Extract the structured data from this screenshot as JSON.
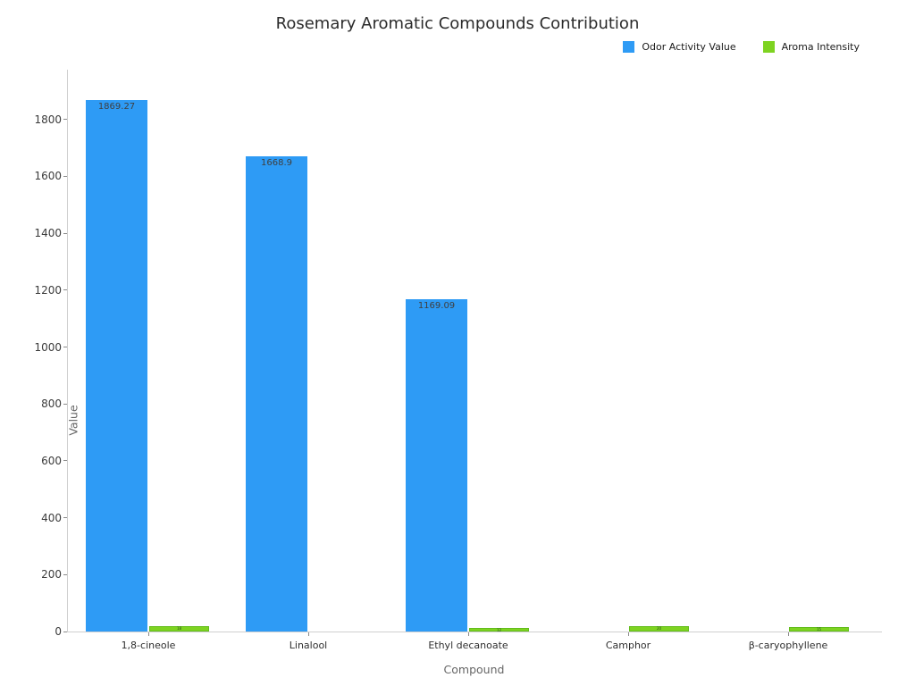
{
  "chart_data": {
    "type": "bar",
    "title": "Rosemary Aromatic Compounds Contribution",
    "xlabel": "Compound",
    "ylabel": "Value",
    "categories": [
      "1,8-cineole",
      "Linalool",
      "Ethyl decanoate",
      "Camphor",
      "β-caryophyllene"
    ],
    "series": [
      {
        "name": "Odor Activity Value",
        "color": "#2e9bf5",
        "values": [
          1869.27,
          1668.9,
          1169.09,
          0,
          0
        ],
        "labels": [
          "1869.27",
          "1668.9",
          "1169.09",
          "",
          ""
        ]
      },
      {
        "name": "Aroma Intensity",
        "color": "#7ed321",
        "border_color": "#63bc1c",
        "values": [
          18,
          0,
          12,
          20,
          15
        ],
        "labels": [
          "18",
          "",
          "12",
          "20",
          "15"
        ]
      }
    ],
    "yticks": [
      0,
      200,
      400,
      600,
      800,
      1000,
      1200,
      1400,
      1600,
      1800
    ],
    "ylim": [
      0,
      1975
    ],
    "grid": false,
    "legend_position": "top-right"
  }
}
